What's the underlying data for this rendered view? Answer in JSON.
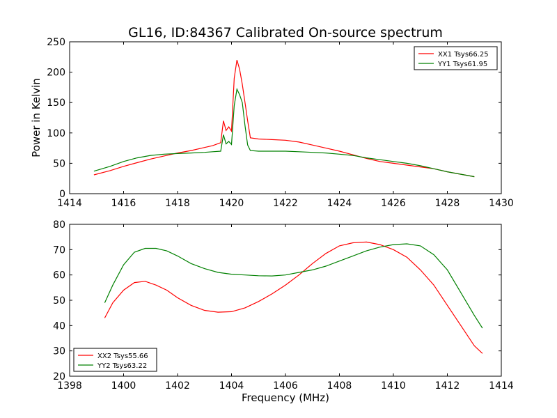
{
  "title": "GL16, ID:84367 Calibrated On-source spectrum",
  "chart_data": [
    {
      "type": "line",
      "ylabel": "Power in Kelvin",
      "xlabel": "",
      "xlim": [
        1414,
        1430
      ],
      "ylim": [
        0,
        250
      ],
      "xticks": [
        1414,
        1416,
        1418,
        1420,
        1422,
        1424,
        1426,
        1428,
        1430
      ],
      "yticks": [
        0,
        50,
        100,
        150,
        200,
        250
      ],
      "legend": "top-right",
      "series": [
        {
          "name": "XX1 Tsys66.25",
          "color": "#ff0000",
          "x": [
            1414.9,
            1415.5,
            1416.0,
            1416.5,
            1417.0,
            1417.5,
            1418.0,
            1418.5,
            1419.0,
            1419.3,
            1419.6,
            1419.7,
            1419.8,
            1419.9,
            1420.0,
            1420.1,
            1420.2,
            1420.3,
            1420.4,
            1420.5,
            1420.6,
            1420.7,
            1421.0,
            1421.5,
            1422.0,
            1422.5,
            1423.0,
            1423.5,
            1424.0,
            1424.5,
            1425.0,
            1425.5,
            1426.0,
            1426.5,
            1427.0,
            1427.5,
            1428.0,
            1428.5,
            1429.0
          ],
          "y": [
            31,
            38,
            45,
            51,
            57,
            62,
            67,
            71,
            76,
            79,
            84,
            120,
            104,
            110,
            103,
            190,
            220,
            205,
            180,
            150,
            120,
            92,
            90,
            89,
            88,
            85,
            80,
            75,
            70,
            64,
            58,
            53,
            50,
            47,
            44,
            41,
            36,
            32,
            28
          ]
        },
        {
          "name": "YY1 Tsys61.95",
          "color": "#008000",
          "x": [
            1414.9,
            1415.5,
            1416.0,
            1416.5,
            1417.0,
            1417.5,
            1418.0,
            1418.5,
            1419.0,
            1419.3,
            1419.6,
            1419.7,
            1419.8,
            1419.9,
            1420.0,
            1420.1,
            1420.2,
            1420.3,
            1420.4,
            1420.5,
            1420.6,
            1420.7,
            1421.0,
            1421.5,
            1422.0,
            1422.5,
            1423.0,
            1423.5,
            1424.0,
            1424.5,
            1425.0,
            1425.5,
            1426.0,
            1426.5,
            1427.0,
            1427.5,
            1428.0,
            1428.5,
            1429.0
          ],
          "y": [
            37,
            45,
            53,
            59,
            63,
            65,
            66,
            67,
            68,
            69,
            70,
            97,
            82,
            86,
            81,
            145,
            172,
            163,
            150,
            112,
            80,
            71,
            70,
            70,
            70,
            69,
            68,
            67,
            65,
            63,
            59,
            56,
            53,
            50,
            46,
            41,
            36,
            32,
            28
          ]
        }
      ]
    },
    {
      "type": "line",
      "ylabel": "",
      "xlabel": "Frequency (MHz)",
      "xlim": [
        1398,
        1414
      ],
      "ylim": [
        20,
        80
      ],
      "xticks": [
        1398,
        1400,
        1402,
        1404,
        1406,
        1408,
        1410,
        1412,
        1414
      ],
      "yticks": [
        20,
        30,
        40,
        50,
        60,
        70,
        80
      ],
      "legend": "bottom-left",
      "series": [
        {
          "name": "XX2 Tsys55.66",
          "color": "#ff0000",
          "x": [
            1399.3,
            1399.6,
            1400.0,
            1400.4,
            1400.8,
            1401.2,
            1401.6,
            1402.0,
            1402.5,
            1403.0,
            1403.5,
            1404.0,
            1404.5,
            1405.0,
            1405.5,
            1406.0,
            1406.5,
            1407.0,
            1407.5,
            1408.0,
            1408.5,
            1409.0,
            1409.5,
            1410.0,
            1410.5,
            1411.0,
            1411.5,
            1412.0,
            1412.5,
            1413.0,
            1413.3
          ],
          "y": [
            43,
            49,
            54,
            57,
            57.5,
            56,
            54,
            51,
            48,
            46,
            45.3,
            45.5,
            47,
            49.5,
            52.5,
            56,
            60,
            64.5,
            68.5,
            71.5,
            72.7,
            73,
            72,
            70,
            67,
            62,
            56,
            48,
            40,
            32,
            29
          ]
        },
        {
          "name": "YY2 Tsys63.22",
          "color": "#008000",
          "x": [
            1399.3,
            1399.6,
            1400.0,
            1400.4,
            1400.8,
            1401.2,
            1401.6,
            1402.0,
            1402.5,
            1403.0,
            1403.5,
            1404.0,
            1404.5,
            1405.0,
            1405.5,
            1406.0,
            1406.5,
            1407.0,
            1407.5,
            1408.0,
            1408.5,
            1409.0,
            1409.5,
            1410.0,
            1410.5,
            1411.0,
            1411.5,
            1412.0,
            1412.5,
            1413.0,
            1413.3
          ],
          "y": [
            49,
            56,
            64,
            69,
            70.5,
            70.5,
            69.5,
            67.5,
            64.5,
            62.5,
            61,
            60.3,
            60,
            59.7,
            59.6,
            60,
            61,
            62,
            63.5,
            65.5,
            67.5,
            69.5,
            71,
            72,
            72.3,
            71.5,
            68,
            62,
            53,
            44,
            39
          ]
        }
      ]
    }
  ]
}
